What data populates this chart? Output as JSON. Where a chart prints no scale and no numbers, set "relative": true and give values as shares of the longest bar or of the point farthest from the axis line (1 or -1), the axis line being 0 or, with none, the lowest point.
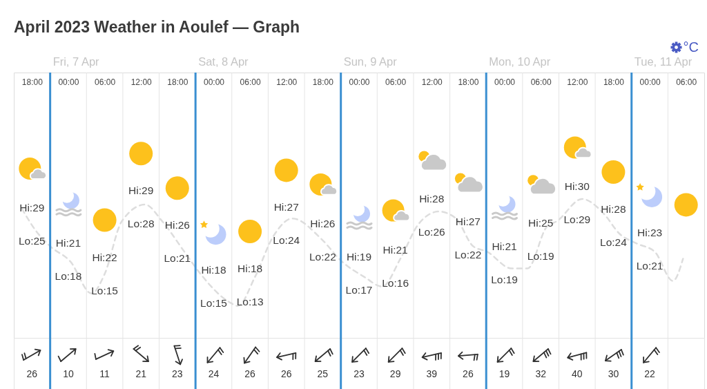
{
  "chart_data": [
    {
      "type": "line",
      "title": "April 2023 Weather in Aoulef — Graph",
      "relative": true,
      "annotations": [
        "°C",
        "Hi:29",
        "Lo:25",
        "Hi:21",
        "Lo:18",
        "Hi:22",
        "Lo:15",
        "Hi:29",
        "Lo:28",
        "Hi:26",
        "Lo:21",
        "Hi:18",
        "Lo:15",
        "Hi:18",
        "Lo:13",
        "Hi:27",
        "Lo:24",
        "Hi:26",
        "Lo:22",
        "Hi:19",
        "Lo:17",
        "Hi:21",
        "Lo:16",
        "Hi:28",
        "Lo:26",
        "Hi:27",
        "Lo:22",
        "Hi:21",
        "Lo:19",
        "Hi:25",
        "Lo:19",
        "Hi:30",
        "Lo:29",
        "Hi:28",
        "Lo:24",
        "Hi:23",
        "Lo:21"
      ],
      "xlim": [
        "2023-04-06T15:00",
        "2023-04-11T09:00"
      ],
      "xticks": [
        {
          "value": "2023-04-06T18:00",
          "label": "18:00"
        },
        {
          "value": "2023-04-07T00:00",
          "label": "00:00"
        },
        {
          "value": "2023-04-07T03:00",
          "label": null
        },
        {
          "value": "2023-04-07T06:00",
          "label": "06:00"
        },
        {
          "value": "2023-04-07T09:00",
          "label": null
        },
        {
          "value": "2023-04-07T12:00",
          "label": "12:00"
        },
        {
          "value": "2023-04-07T15:00",
          "label": null
        },
        {
          "value": "2023-04-07T18:00",
          "label": "18:00"
        },
        {
          "value": "2023-04-08T00:00",
          "label": "00:00"
        },
        {
          "value": "2023-04-08T03:00",
          "label": null
        },
        {
          "value": "2023-04-08T06:00",
          "label": "06:00"
        },
        {
          "value": "2023-04-08T09:00",
          "label": null
        },
        {
          "value": "2023-04-08T12:00",
          "label": "12:00"
        },
        {
          "value": "2023-04-08T15:00",
          "label": null
        },
        {
          "value": "2023-04-08T18:00",
          "label": "18:00"
        },
        {
          "value": "2023-04-09T00:00",
          "label": "00:00"
        },
        {
          "value": "2023-04-09T03:00",
          "label": null
        },
        {
          "value": "2023-04-09T06:00",
          "label": "06:00"
        },
        {
          "value": "2023-04-09T09:00",
          "label": null
        },
        {
          "value": "2023-04-09T12:00",
          "label": "12:00"
        },
        {
          "value": "2023-04-09T15:00",
          "label": null
        },
        {
          "value": "2023-04-09T18:00",
          "label": "18:00"
        },
        {
          "value": "2023-04-10T00:00",
          "label": "00:00"
        },
        {
          "value": "2023-04-10T03:00",
          "label": null
        },
        {
          "value": "2023-04-10T06:00",
          "label": "06:00"
        },
        {
          "value": "2023-04-10T09:00",
          "label": null
        },
        {
          "value": "2023-04-10T12:00",
          "label": "12:00"
        },
        {
          "value": "2023-04-10T15:00",
          "label": null
        },
        {
          "value": "2023-04-10T18:00",
          "label": "18:00"
        },
        {
          "value": "2023-04-11T00:00",
          "label": "00:00"
        },
        {
          "value": "2023-04-11T03:00",
          "label": null
        },
        {
          "value": "2023-04-11T06:00",
          "label": "06:00"
        }
      ],
      "grid": "x",
      "ref_lines": [
        {
          "axis": "x",
          "value": "2023-04-06T21:00",
          "label": "Fri, 7 Apr",
          "color": "#3a8fd1"
        },
        {
          "axis": "x",
          "value": "2023-04-07T21:00",
          "label": "Sat, 8 Apr",
          "color": "#3a8fd1"
        },
        {
          "axis": "x",
          "value": "2023-04-08T21:00",
          "label": "Sun, 9 Apr",
          "color": "#3a8fd1"
        },
        {
          "axis": "x",
          "value": "2023-04-09T21:00",
          "label": "Mon, 10 Apr",
          "color": "#3a8fd1"
        },
        {
          "axis": "x",
          "value": "2023-04-10T21:00",
          "label": "Tue, 11 Apr",
          "color": "#3a8fd1"
        }
      ],
      "series": [
        {
          "type": "line",
          "color": "#dddddd",
          "line_style": "dashed",
          "marker": "none",
          "x": [
            "2023-04-06T16:20",
            "2023-04-06T18:40",
            "2023-04-06T21:00",
            "2023-04-07T00:20",
            "2023-04-07T03:50",
            "2023-04-07T06:00",
            "2023-04-07T08:50",
            "2023-04-07T12:40",
            "2023-04-07T15:30",
            "2023-04-07T19:10",
            "2023-04-07T21:50",
            "2023-04-08T02:30",
            "2023-04-08T04:00",
            "2023-04-08T06:50",
            "2023-04-08T09:50",
            "2023-04-08T13:00",
            "2023-04-08T17:50",
            "2023-04-08T21:10",
            "2023-04-09T00:50",
            "2023-04-09T03:50",
            "2023-04-09T06:50",
            "2023-04-09T09:50",
            "2023-04-09T13:10",
            "2023-04-09T16:00",
            "2023-04-09T18:50",
            "2023-04-09T21:10",
            "2023-04-10T01:10",
            "2023-04-10T03:50",
            "2023-04-10T07:00",
            "2023-04-10T08:40",
            "2023-04-10T12:50",
            "2023-04-10T16:30",
            "2023-04-10T19:00",
            "2023-04-10T21:50",
            "2023-04-11T00:50",
            "2023-04-11T03:50",
            "2023-04-11T05:30"
          ],
          "values": [
            0.93,
            0.77,
            0.66,
            0.55,
            0.32,
            0.46,
            0.84,
            0.96,
            0.84,
            0.62,
            0.46,
            0.26,
            0.23,
            0.44,
            0.73,
            0.86,
            0.71,
            0.55,
            0.44,
            0.37,
            0.57,
            0.82,
            0.91,
            0.86,
            0.66,
            0.62,
            0.5,
            0.5,
            0.8,
            0.84,
            1,
            0.89,
            0.75,
            0.68,
            0.62,
            0.41,
            0.57
          ]
        }
      ]
    },
    {
      "type": "other",
      "values": [
        26,
        10,
        11,
        21,
        23,
        24,
        26,
        26,
        25,
        23,
        29,
        39,
        26,
        19,
        32,
        40,
        30,
        22,
        null
      ],
      "data_labels": true
    }
  ]
}
